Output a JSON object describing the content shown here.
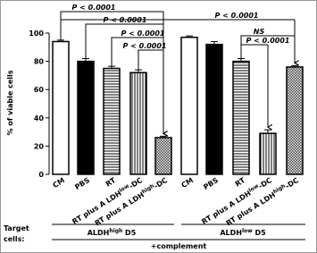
{
  "chart_data": {
    "type": "bar",
    "y_label": "% of viable cells",
    "ylim": [
      0,
      100
    ],
    "yticks": [
      0,
      20,
      40,
      60,
      80,
      100
    ],
    "categories": [
      {
        "text": "CM"
      },
      {
        "text": "PBS"
      },
      {
        "text": "RT"
      },
      {
        "text": "RT plus A LDH",
        "sup": "low",
        "end": "-DC"
      },
      {
        "text": "RT plus A LDH",
        "sup": "high",
        "end": "-DC"
      },
      {
        "text": "CM"
      },
      {
        "text": "PBS"
      },
      {
        "text": "RT"
      },
      {
        "text": "RT plus A LDH",
        "sup": "low",
        "end": "-DC"
      },
      {
        "text": "RT plus A LDH",
        "sup": "high",
        "end": "-DC"
      }
    ],
    "values": [
      94,
      80,
      75,
      72,
      26,
      97,
      92,
      80,
      29,
      76
    ],
    "errors": [
      1,
      2,
      1.5,
      2,
      1,
      1,
      2,
      2,
      2.5,
      1
    ],
    "patterns": [
      "open",
      "solid",
      "horizontal",
      "vertical",
      "checker",
      "open",
      "solid",
      "horizontal",
      "vertical",
      "checker"
    ],
    "annotations": [
      "P < 0.0001",
      "P < 0.0001",
      "P < 0.0001",
      "P < 0.0001",
      "P < 0.0001",
      "NS",
      "P < 0.0001"
    ],
    "row_label": [
      "Target",
      "cells:"
    ],
    "groups": [
      {
        "text": "ALDH",
        "sup": "high",
        "end": " D5"
      },
      {
        "text": "ALDH",
        "sup": "low",
        "end": " D5"
      }
    ],
    "treatment": "+complement"
  }
}
